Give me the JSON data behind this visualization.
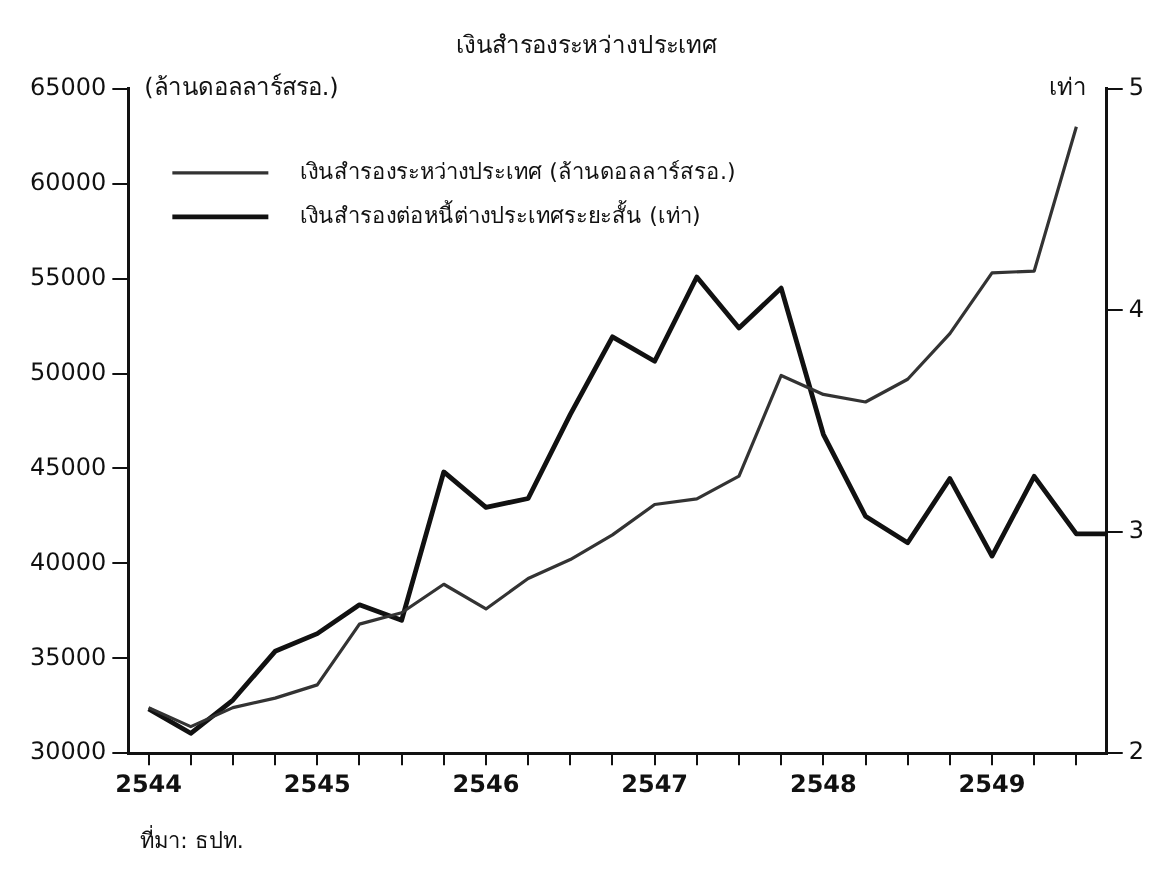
{
  "chart_data": {
    "type": "line",
    "title": "เงินสำรองระหว่างประเทศ",
    "ylabel": "(ล้านดอลลาร์สรอ.)",
    "y2label": "เท่า",
    "annotations": [
      "ที่มา: ธปท."
    ],
    "x": [
      2544,
      2544.25,
      2544.5,
      2544.75,
      2545,
      2545.25,
      2545.5,
      2545.75,
      2546,
      2546.25,
      2546.5,
      2546.75,
      2547,
      2547.25,
      2547.5,
      2547.75,
      2548,
      2548.25,
      2548.5,
      2548.75,
      2549,
      2549.25,
      2549.5
    ],
    "series": [
      {
        "name": "เงินสำรองระหว่างประเทศ (ล้านดอลลาร์สรอ.)",
        "color": "#333333",
        "values": [
          32400,
          31400,
          32400,
          32900,
          33600,
          36800,
          37400,
          38900,
          37600,
          39200,
          40200,
          41500,
          43100,
          43400,
          44600,
          49900,
          48900,
          48500,
          49700,
          52100,
          55300,
          55400,
          63000
        ]
      },
      {
        "name": "เงินสำรองต่อหนี้ต่างประเทศระยะสั้น (เท่า)",
        "color": "#111111",
        "axis": "y2",
        "x": [
          2544,
          2544.25,
          2544.5,
          2544.75,
          2545,
          2545.25,
          2545.5,
          2545.75,
          2546,
          2546.25,
          2546.5,
          2546.75,
          2547,
          2547.25,
          2547.5,
          2547.75,
          2548,
          2548.25,
          2548.5,
          2548.75,
          2549,
          2549.25,
          2549.5,
          2549.68
        ],
        "values": [
          2.2,
          2.09,
          2.24,
          2.46,
          2.54,
          2.67,
          2.6,
          3.27,
          3.11,
          3.15,
          3.53,
          3.88,
          3.77,
          4.15,
          3.92,
          4.1,
          3.44,
          3.07,
          2.95,
          3.24,
          2.89,
          3.25,
          2.99,
          2.99
        ]
      }
    ],
    "xlim": [
      2543.88,
      2549.68
    ],
    "xticks": [
      2544,
      {
        "value": 2544.25,
        "label": null
      },
      {
        "value": 2544.5,
        "label": null
      },
      {
        "value": 2544.75,
        "label": null
      },
      2545,
      {
        "value": 2545.25,
        "label": null
      },
      {
        "value": 2545.5,
        "label": null
      },
      {
        "value": 2545.75,
        "label": null
      },
      2546,
      {
        "value": 2546.25,
        "label": null
      },
      {
        "value": 2546.5,
        "label": null
      },
      {
        "value": 2546.75,
        "label": null
      },
      2547,
      {
        "value": 2547.25,
        "label": null
      },
      {
        "value": 2547.5,
        "label": null
      },
      {
        "value": 2547.75,
        "label": null
      },
      2548,
      {
        "value": 2548.25,
        "label": null
      },
      {
        "value": 2548.5,
        "label": null
      },
      {
        "value": 2548.75,
        "label": null
      },
      2549,
      {
        "value": 2549.25,
        "label": null
      },
      {
        "value": 2549.5,
        "label": null
      }
    ],
    "ylim": [
      30000,
      65000
    ],
    "yticks": [
      30000,
      35000,
      40000,
      45000,
      50000,
      55000,
      60000,
      65000
    ],
    "y2lim": [
      2,
      5
    ],
    "y2ticks": [
      2,
      3,
      4,
      5
    ],
    "legend": "top left",
    "marker": "none",
    "line_style": "solid"
  }
}
